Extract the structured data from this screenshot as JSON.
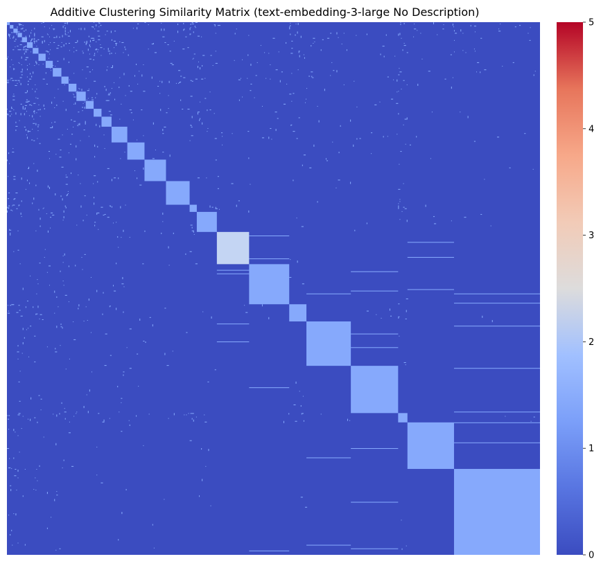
{
  "chart_data": {
    "type": "heatmap",
    "title": "Additive Clustering Similarity Matrix (text-embedding-3-large No Description)",
    "xlabel": "",
    "ylabel": "",
    "colormap": "coolwarm",
    "color_range": [
      0,
      5
    ],
    "colorbar_ticks": [
      "0",
      "1",
      "2",
      "3",
      "4",
      "5"
    ],
    "colors": {
      "background": "#3b4cc0",
      "level_1": "#86a9fc",
      "level_1_5": "#c4d5f3",
      "low": "#3b4cc0",
      "mid": "#dddcdc",
      "high": "#b40426"
    },
    "n_items": 744,
    "clusters": [
      {
        "start": 0,
        "end": 4,
        "value": 1
      },
      {
        "start": 4,
        "end": 9,
        "value": 1
      },
      {
        "start": 9,
        "end": 15,
        "value": 1
      },
      {
        "start": 15,
        "end": 21,
        "value": 1
      },
      {
        "start": 21,
        "end": 28,
        "value": 1
      },
      {
        "start": 28,
        "end": 36,
        "value": 1
      },
      {
        "start": 36,
        "end": 44,
        "value": 1
      },
      {
        "start": 44,
        "end": 54,
        "value": 1
      },
      {
        "start": 54,
        "end": 64,
        "value": 1
      },
      {
        "start": 64,
        "end": 76,
        "value": 1
      },
      {
        "start": 76,
        "end": 86,
        "value": 1
      },
      {
        "start": 86,
        "end": 97,
        "value": 1
      },
      {
        "start": 97,
        "end": 110,
        "value": 1
      },
      {
        "start": 110,
        "end": 121,
        "value": 1
      },
      {
        "start": 121,
        "end": 132,
        "value": 1
      },
      {
        "start": 132,
        "end": 146,
        "value": 1
      },
      {
        "start": 146,
        "end": 168,
        "value": 1
      },
      {
        "start": 168,
        "end": 192,
        "value": 1
      },
      {
        "start": 192,
        "end": 222,
        "value": 1
      },
      {
        "start": 222,
        "end": 255,
        "value": 1
      },
      {
        "start": 255,
        "end": 265,
        "value": 1
      },
      {
        "start": 265,
        "end": 293,
        "value": 1
      },
      {
        "start": 293,
        "end": 338,
        "value": 1.5
      },
      {
        "start": 338,
        "end": 394,
        "value": 1
      },
      {
        "start": 394,
        "end": 418,
        "value": 1
      },
      {
        "start": 418,
        "end": 480,
        "value": 1
      },
      {
        "start": 480,
        "end": 546,
        "value": 1
      },
      {
        "start": 546,
        "end": 559,
        "value": 1
      },
      {
        "start": 559,
        "end": 624,
        "value": 1
      },
      {
        "start": 624,
        "end": 744,
        "value": 1
      }
    ]
  }
}
